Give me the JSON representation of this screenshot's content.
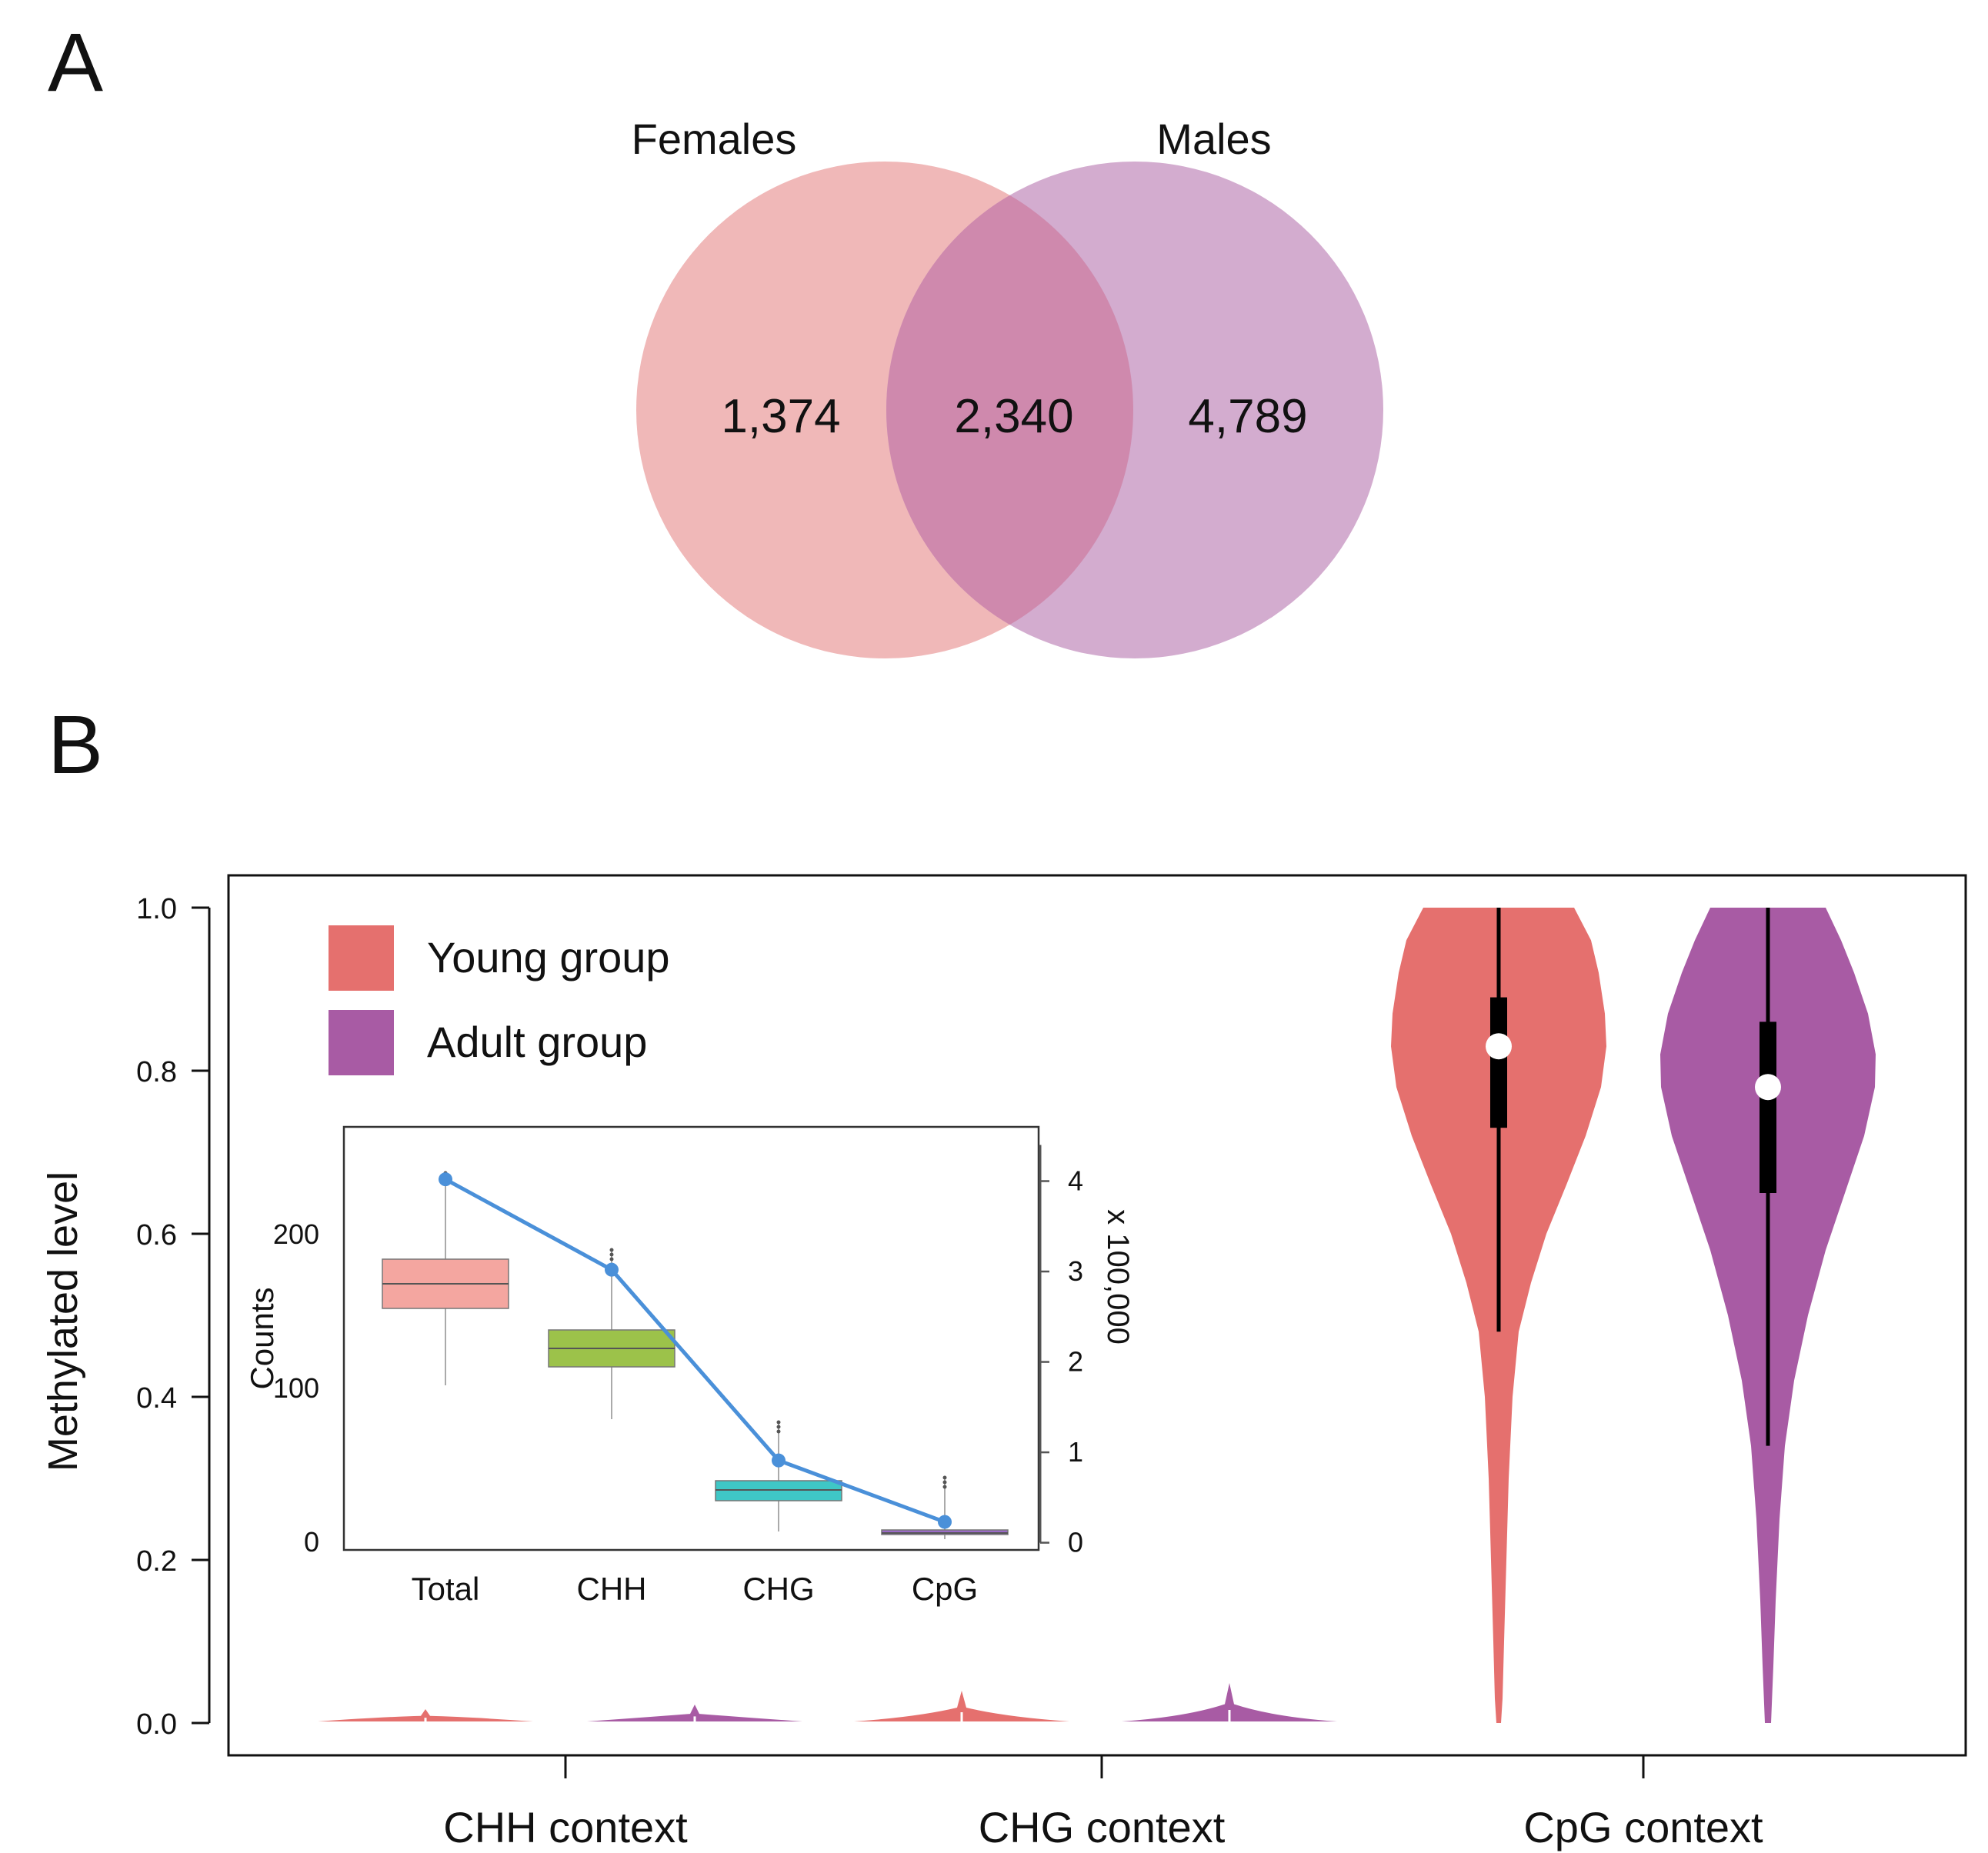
{
  "panels": {
    "a_label": "A",
    "b_label": "B"
  },
  "venn": {
    "left_set": "Females",
    "right_set": "Males",
    "left_only": "1,374",
    "intersection": "2,340",
    "right_only": "4,789",
    "left_color": "#f0b8b8",
    "right_color": "#d3accf",
    "overlap_color": "#cf89ad"
  },
  "chart_data": [
    {
      "type": "violin",
      "ylabel": "Methylated level",
      "ylim": [
        0,
        1
      ],
      "yticks": [
        "0.0",
        "0.2",
        "0.4",
        "0.6",
        "0.8",
        "1.0"
      ],
      "categories": [
        "CHH context",
        "CHG context",
        "CpG context"
      ],
      "legend": {
        "position": "top-left",
        "entries": [
          {
            "label": "Young group",
            "color": "#e5706e"
          },
          {
            "label": "Adult group",
            "color": "#a85ba4"
          }
        ]
      },
      "series": [
        {
          "name": "Young group",
          "color": "#e5706e",
          "summaries": [
            {
              "median": 0.005,
              "q1": 0.001,
              "q3": 0.01
            },
            {
              "median": 0.01,
              "q1": 0.003,
              "q3": 0.02
            },
            {
              "median": 0.83,
              "q1": 0.73,
              "q3": 0.89,
              "whisker_low": 0.48,
              "whisker_high": 1.0
            }
          ]
        },
        {
          "name": "Adult group",
          "color": "#a85ba4",
          "summaries": [
            {
              "median": 0.005,
              "q1": 0.001,
              "q3": 0.01
            },
            {
              "median": 0.012,
              "q1": 0.004,
              "q3": 0.025
            },
            {
              "median": 0.78,
              "q1": 0.65,
              "q3": 0.86,
              "whisker_low": 0.34,
              "whisker_high": 1.0
            }
          ]
        }
      ]
    },
    {
      "type": "box+line",
      "ylabel": "Counts",
      "ylabel_right": "x 100,000",
      "categories": [
        "Total",
        "CHH",
        "CHG",
        "CpG"
      ],
      "yticks_left": [
        "0",
        "100",
        "200"
      ],
      "yticks_right": [
        "0",
        "1",
        "2",
        "3",
        "4"
      ],
      "ylim_left": [
        -5,
        270
      ],
      "ylim_right": [
        -0.08,
        4.6
      ],
      "boxes": [
        {
          "category": "Total",
          "q1": 152,
          "median": 168,
          "q3": 184,
          "whisker_low": 102,
          "whisker_high": 240,
          "color": "#f4a6a0"
        },
        {
          "category": "CHH",
          "q1": 114,
          "median": 126,
          "q3": 138,
          "whisker_low": 80,
          "whisker_high": 190,
          "color": "#9cc24a"
        },
        {
          "category": "CHG",
          "q1": 27,
          "median": 34,
          "q3": 40,
          "whisker_low": 7,
          "whisker_high": 78,
          "color": "#3fc7c6"
        },
        {
          "category": "CpG",
          "q1": 5,
          "median": 6,
          "q3": 8,
          "whisker_low": 2,
          "whisker_high": 42,
          "color": "#9b6ac7"
        }
      ],
      "line": {
        "color": "#4a90d9",
        "values": [
          4.02,
          3.02,
          0.91,
          0.23
        ]
      }
    }
  ]
}
